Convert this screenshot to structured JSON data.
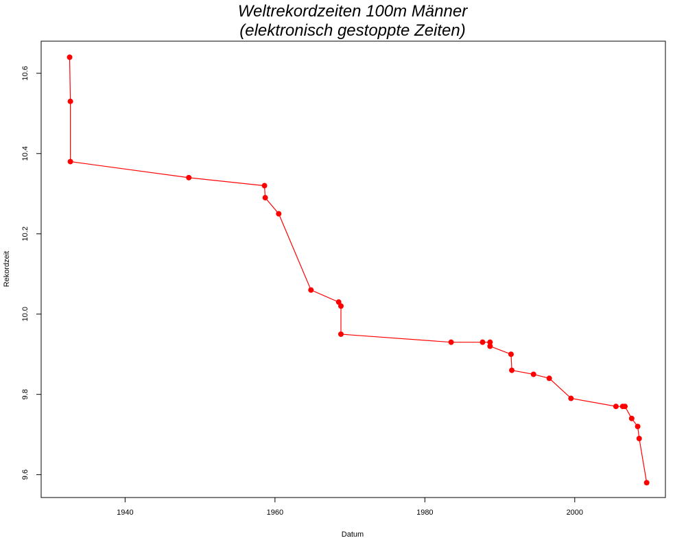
{
  "chart_data": {
    "type": "line",
    "title": "Weltrekordzeiten 100m Männer",
    "subtitle": "(elektronisch gestoppte Zeiten)",
    "xlabel": "Datum",
    "ylabel": "Rekordzeit",
    "xlim": [
      1928.8,
      2012.1
    ],
    "ylim": [
      9.543,
      10.68
    ],
    "x_ticks": [
      1940,
      1960,
      1980,
      2000
    ],
    "y_ticks": [
      9.6,
      9.8,
      10.0,
      10.2,
      10.4,
      10.6
    ],
    "y_tick_labels": [
      "9.6",
      "9.8",
      "10.0",
      "10.2",
      "10.4",
      "10.6"
    ],
    "grid": false,
    "series": [
      {
        "color": "#ff0000",
        "x": [
          1932.6,
          1932.7,
          1932.7,
          1948.5,
          1958.6,
          1958.7,
          1960.5,
          1964.8,
          1968.5,
          1968.8,
          1968.8,
          1983.5,
          1987.7,
          1988.7,
          1988.7,
          1991.5,
          1991.6,
          1994.5,
          1996.6,
          1999.5,
          2005.5,
          2006.4,
          2006.7,
          2007.6,
          2008.4,
          2008.6,
          2009.6
        ],
        "y": [
          10.64,
          10.53,
          10.38,
          10.34,
          10.32,
          10.29,
          10.25,
          10.06,
          10.03,
          10.02,
          9.95,
          9.93,
          9.93,
          9.93,
          9.92,
          9.9,
          9.86,
          9.85,
          9.84,
          9.79,
          9.77,
          9.77,
          9.77,
          9.74,
          9.72,
          9.69,
          9.58
        ]
      }
    ]
  }
}
